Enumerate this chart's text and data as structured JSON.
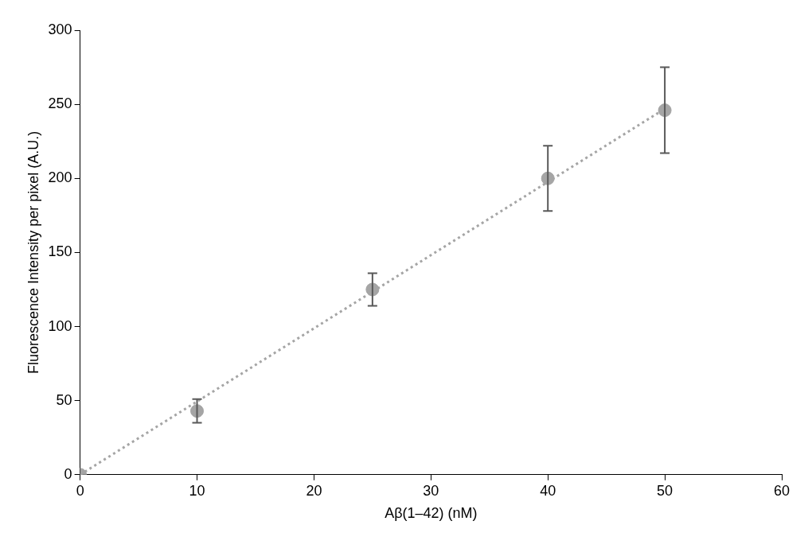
{
  "chart_data": {
    "type": "scatter",
    "xlabel": "Aβ(1–42) (nM)",
    "ylabel": "Fluorescence Intensity per pixel (A.U.)",
    "xlim": [
      0,
      60
    ],
    "xticks": [
      0,
      10,
      20,
      30,
      40,
      50,
      60
    ],
    "ylim": [
      0,
      300
    ],
    "yticks": [
      0,
      50,
      100,
      150,
      200,
      250,
      300
    ],
    "grid": false,
    "legend": false,
    "marker": "circle",
    "series": [
      {
        "color": "#a5a5a5",
        "x": [
          0,
          10,
          25,
          40,
          50
        ],
        "values": [
          0,
          43,
          125,
          200,
          246
        ],
        "errors": [
          null,
          8,
          11,
          22,
          29
        ]
      },
      {
        "type": "line",
        "color": "#a5a5a5",
        "line_style": "dotted",
        "marker": "none",
        "x": [
          0,
          50
        ],
        "values": [
          0,
          247
        ]
      }
    ]
  }
}
